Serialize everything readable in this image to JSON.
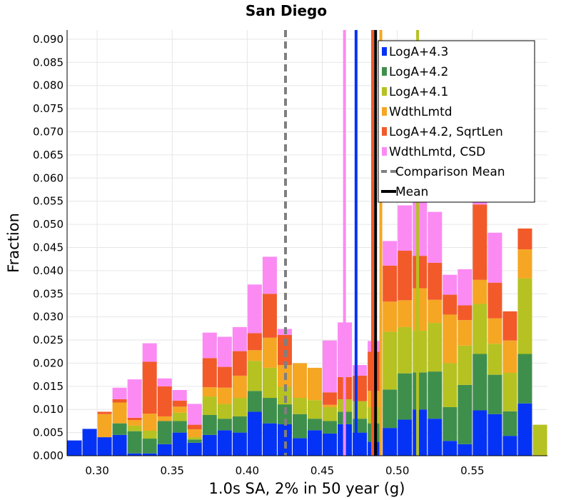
{
  "chart_data": {
    "type": "bar",
    "title": "San Diego",
    "xlabel": "1.0s SA, 2% in 50 year (g)",
    "ylabel": "Fraction",
    "xlim": [
      0.28,
      0.6
    ],
    "ylim": [
      0.0,
      0.092
    ],
    "bin_width": 0.01,
    "x_ticks": [
      "0.30",
      "0.35",
      "0.40",
      "0.45",
      "0.50",
      "0.55"
    ],
    "y_ticks": [
      "0.000",
      "0.005",
      "0.010",
      "0.015",
      "0.020",
      "0.025",
      "0.030",
      "0.035",
      "0.040",
      "0.045",
      "0.050",
      "0.055",
      "0.060",
      "0.065",
      "0.070",
      "0.075",
      "0.080",
      "0.085",
      "0.090"
    ],
    "grid": true,
    "legend_position": "top-right",
    "bins_x": [
      0.285,
      0.295,
      0.305,
      0.315,
      0.325,
      0.335,
      0.345,
      0.355,
      0.365,
      0.375,
      0.385,
      0.395,
      0.405,
      0.415,
      0.425,
      0.435,
      0.445,
      0.455,
      0.465,
      0.475,
      0.485,
      0.495,
      0.505,
      0.515,
      0.525,
      0.535,
      0.545,
      0.555,
      0.565,
      0.575,
      0.585,
      0.595
    ],
    "series": [
      {
        "name": "LogA+4.3",
        "color": "#0533f5",
        "values": [
          0.0033,
          0.0058,
          0.004,
          0.0045,
          0.0005,
          0.0005,
          0.0025,
          0.005,
          0.0028,
          0.0045,
          0.0055,
          0.005,
          0.0095,
          0.007,
          0.0068,
          0.0038,
          0.0055,
          0.0048,
          0.0068,
          0.005,
          0.003,
          0.006,
          0.0078,
          0.01,
          0.008,
          0.0032,
          0.0025,
          0.0098,
          0.009,
          0.0043,
          0.0113,
          0.0
        ]
      },
      {
        "name": "LogA+4.2",
        "color": "#3f8f4c",
        "values": [
          0.0,
          0.0,
          0.0,
          0.0025,
          0.0048,
          0.0032,
          0.005,
          0.0025,
          0.0007,
          0.0043,
          0.0025,
          0.0035,
          0.0045,
          0.0055,
          0.0043,
          0.0052,
          0.0025,
          0.0027,
          0.0027,
          0.003,
          0.004,
          0.0083,
          0.01,
          0.008,
          0.0102,
          0.0073,
          0.0128,
          0.0122,
          0.0085,
          0.0053,
          0.0107,
          0.0
        ]
      },
      {
        "name": "LogA+4.1",
        "color": "#b5c221",
        "values": [
          0.0,
          0.0,
          0.0,
          0.0,
          0.0012,
          0.0017,
          0.0,
          0.0018,
          0.0005,
          0.004,
          0.0032,
          0.004,
          0.0065,
          0.0065,
          0.0038,
          0.0035,
          0.004,
          0.003,
          0.0027,
          0.0038,
          0.0035,
          0.0125,
          0.01,
          0.009,
          0.0105,
          0.0095,
          0.0085,
          0.0108,
          0.0067,
          0.0083,
          0.0163,
          0.0067
        ]
      },
      {
        "name": "WdthLmtd",
        "color": "#f5a623",
        "values": [
          0.0,
          0.0,
          0.005,
          0.0045,
          0.0012,
          0.0037,
          0.001,
          0.0013,
          0.0017,
          0.002,
          0.0035,
          0.0048,
          0.0023,
          0.0065,
          0.0047,
          0.0075,
          0.007,
          0.0005,
          0.0,
          0.0,
          0.0035,
          0.0065,
          0.0058,
          0.0092,
          0.005,
          0.0105,
          0.0055,
          0.0052,
          0.0055,
          0.007,
          0.0063,
          0.0
        ]
      },
      {
        "name": "LogA+4.2, SqrtLen",
        "color": "#f25a2a",
        "values": [
          0.0,
          0.0,
          0.0005,
          0.0007,
          0.0005,
          0.0112,
          0.0065,
          0.0013,
          0.001,
          0.0063,
          0.0045,
          0.0053,
          0.0037,
          0.0095,
          0.0065,
          0.0,
          0.0,
          0.0027,
          0.0048,
          0.0055,
          0.0085,
          0.0078,
          0.0107,
          0.007,
          0.008,
          0.0043,
          0.0032,
          0.0163,
          0.0077,
          0.0063,
          0.0045,
          0.0
        ]
      },
      {
        "name": "WdthLmtd, CSD",
        "color": "#fb8af3",
        "values": [
          0.0,
          0.0,
          0.0,
          0.0025,
          0.0083,
          0.004,
          0.0017,
          0.0023,
          0.0045,
          0.0055,
          0.0065,
          0.0052,
          0.0105,
          0.008,
          0.0013,
          0.0,
          0.0,
          0.0112,
          0.0118,
          0.0023,
          0.0023,
          0.0053,
          0.0098,
          0.0122,
          0.011,
          0.0043,
          0.0078,
          0.0152,
          0.0108,
          0.0,
          0.0,
          0.0
        ]
      }
    ],
    "vertical_lines": [
      {
        "name": "Comparison Mean",
        "x": 0.4255,
        "color": "#7f7f7f",
        "style": "dashed"
      },
      {
        "name": "Mean",
        "x": 0.4855,
        "color": "#000000",
        "style": "solid"
      },
      {
        "x": 0.4725,
        "color": "#0533f5",
        "style": "solid"
      },
      {
        "x": 0.4835,
        "color": "#f25a2a",
        "style": "solid"
      },
      {
        "x": 0.489,
        "color": "#f5a623",
        "style": "solid"
      },
      {
        "x": 0.5135,
        "color": "#b5c221",
        "style": "solid"
      },
      {
        "x": 0.4648,
        "color": "#fb8af3",
        "style": "solid"
      }
    ],
    "legend": [
      {
        "label": "LogA+4.3",
        "color": "#0533f5",
        "kind": "box"
      },
      {
        "label": "LogA+4.2",
        "color": "#3f8f4c",
        "kind": "box"
      },
      {
        "label": "LogA+4.1",
        "color": "#b5c221",
        "kind": "box"
      },
      {
        "label": "WdthLmtd",
        "color": "#f5a623",
        "kind": "box"
      },
      {
        "label": "LogA+4.2, SqrtLen",
        "color": "#f25a2a",
        "kind": "box"
      },
      {
        "label": "WdthLmtd, CSD",
        "color": "#fb8af3",
        "kind": "box"
      },
      {
        "label": "Comparison Mean",
        "color": "#7f7f7f",
        "kind": "dashed"
      },
      {
        "label": "Mean",
        "color": "#000000",
        "kind": "line"
      }
    ]
  }
}
